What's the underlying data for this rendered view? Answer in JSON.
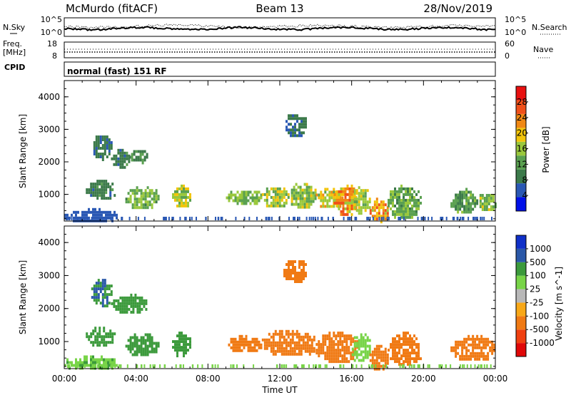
{
  "header": {
    "station": "McMurdo (fitACF)",
    "beam": "Beam 13",
    "date": "28/Nov/2019"
  },
  "nsky_panel": {
    "left_label": "N.Sky",
    "left_ticks": [
      "10^5",
      "10^0"
    ],
    "right_label": "N.Search",
    "right_ticks": [
      "10^5",
      "10^0"
    ]
  },
  "freq_panel": {
    "left_label_line1": "Freq.",
    "left_label_line2": "[MHz]",
    "left_ticks": [
      "18",
      "8"
    ],
    "right_label": "Nave",
    "right_ticks": [
      "60",
      "0"
    ],
    "cpid_label": "CPID",
    "cpid_text": "normal (fast) 151 RF"
  },
  "colors": {
    "power_scale": [
      "#0010e8",
      "#2a58b4",
      "#3c7a4a",
      "#5aa050",
      "#9ac83c",
      "#f2c40a",
      "#f08814",
      "#f0501a",
      "#e81010"
    ],
    "velocity_scale": [
      "#e00808",
      "#f04010",
      "#f07a14",
      "#f8a818",
      "#b8b8b8",
      "#78d448",
      "#3c9a3c",
      "#2a58a8",
      "#1030c8"
    ]
  },
  "chart_data": [
    {
      "type": "heatmap",
      "name": "power",
      "ylabel": "Slant Range [km]",
      "yticks": [
        "1000",
        "2000",
        "3000",
        "4000"
      ],
      "ylim": [
        180,
        4500
      ],
      "xlim": [
        0,
        24
      ],
      "colorbar": {
        "label": "Power [dB]",
        "ticks": [
          "4",
          "8",
          "12",
          "16",
          "20",
          "24",
          "28"
        ],
        "range": [
          0,
          32
        ]
      },
      "echo_regions": [
        {
          "t": [
            1.5,
            2.6
          ],
          "r": [
            2100,
            2900
          ],
          "value": 8
        },
        {
          "t": [
            2.6,
            3.6
          ],
          "r": [
            1850,
            2400
          ],
          "value": 9
        },
        {
          "t": [
            3.6,
            4.6
          ],
          "r": [
            2000,
            2450
          ],
          "value": 10
        },
        {
          "t": [
            1.2,
            2.8
          ],
          "r": [
            900,
            1450
          ],
          "value": 9
        },
        {
          "t": [
            3.4,
            5.2
          ],
          "r": [
            600,
            1250
          ],
          "value": 14
        },
        {
          "t": [
            6.0,
            7.0
          ],
          "r": [
            600,
            1300
          ],
          "value": 17
        },
        {
          "t": [
            9.0,
            11.0
          ],
          "r": [
            700,
            1200
          ],
          "value": 14
        },
        {
          "t": [
            11.0,
            12.5
          ],
          "r": [
            600,
            1300
          ],
          "value": 16
        },
        {
          "t": [
            12.5,
            14.0
          ],
          "r": [
            600,
            1350
          ],
          "value": 15
        },
        {
          "t": [
            14.0,
            15.5
          ],
          "r": [
            600,
            1200
          ],
          "value": 18
        },
        {
          "t": [
            15.0,
            16.3
          ],
          "r": [
            400,
            1300
          ],
          "value": 22
        },
        {
          "t": [
            16.0,
            17.0
          ],
          "r": [
            400,
            1250
          ],
          "value": 16
        },
        {
          "t": [
            17.0,
            18.0
          ],
          "r": [
            180,
            900
          ],
          "value": 22
        },
        {
          "t": [
            18.0,
            19.8
          ],
          "r": [
            300,
            1300
          ],
          "value": 13
        },
        {
          "t": [
            21.5,
            23.0
          ],
          "r": [
            450,
            1200
          ],
          "value": 12
        },
        {
          "t": [
            23.0,
            24.0
          ],
          "r": [
            500,
            1100
          ],
          "value": 15
        },
        {
          "t": [
            12.2,
            13.5
          ],
          "r": [
            2800,
            3550
          ],
          "value": 8
        },
        {
          "t": [
            0.0,
            3.0
          ],
          "r": [
            180,
            580
          ],
          "value": 5
        }
      ]
    },
    {
      "type": "heatmap",
      "name": "velocity",
      "ylabel": "Slant Range [km]",
      "yticks": [
        "1000",
        "2000",
        "3000",
        "4000"
      ],
      "ylim": [
        180,
        4500
      ],
      "xlim": [
        0,
        24
      ],
      "xlabel": "Time UT",
      "xticks": [
        "00:00",
        "04:00",
        "08:00",
        "12:00",
        "16:00",
        "20:00",
        "00:00"
      ],
      "colorbar": {
        "label": "Velocity [m s^-1]",
        "ticks": [
          "1000",
          "500",
          "100",
          "25",
          "-25",
          "-100",
          "-500",
          "-1000"
        ]
      },
      "echo_regions": [
        {
          "t": [
            1.5,
            2.6
          ],
          "r": [
            2100,
            2900
          ],
          "value": 500
        },
        {
          "t": [
            2.6,
            4.6
          ],
          "r": [
            1850,
            2450
          ],
          "value": 400
        },
        {
          "t": [
            1.2,
            2.8
          ],
          "r": [
            900,
            1450
          ],
          "value": 150
        },
        {
          "t": [
            3.4,
            5.2
          ],
          "r": [
            600,
            1250
          ],
          "value": 200
        },
        {
          "t": [
            6.0,
            7.0
          ],
          "r": [
            600,
            1300
          ],
          "value": 150
        },
        {
          "t": [
            9.0,
            11.0
          ],
          "r": [
            700,
            1200
          ],
          "value": -150
        },
        {
          "t": [
            11.0,
            14.0
          ],
          "r": [
            600,
            1350
          ],
          "value": -180
        },
        {
          "t": [
            14.0,
            16.3
          ],
          "r": [
            400,
            1300
          ],
          "value": -170
        },
        {
          "t": [
            16.0,
            17.0
          ],
          "r": [
            400,
            1250
          ],
          "value": 80
        },
        {
          "t": [
            17.0,
            18.0
          ],
          "r": [
            180,
            900
          ],
          "value": -160
        },
        {
          "t": [
            18.0,
            19.8
          ],
          "r": [
            300,
            1300
          ],
          "value": -140
        },
        {
          "t": [
            21.5,
            24.0
          ],
          "r": [
            450,
            1200
          ],
          "value": -150
        },
        {
          "t": [
            12.2,
            13.5
          ],
          "r": [
            2800,
            3550
          ],
          "value": -150
        },
        {
          "t": [
            0.0,
            3.0
          ],
          "r": [
            180,
            580
          ],
          "value": 90
        }
      ]
    }
  ]
}
